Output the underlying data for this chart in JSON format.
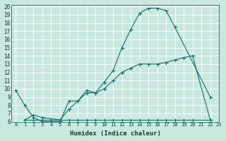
{
  "xlabel": "Humidex (Indice chaleur)",
  "xlim": [
    -0.5,
    23
  ],
  "ylim": [
    6,
    20.2
  ],
  "xticks": [
    0,
    1,
    2,
    3,
    4,
    5,
    6,
    7,
    8,
    9,
    10,
    11,
    12,
    13,
    14,
    15,
    16,
    17,
    18,
    19,
    20,
    21,
    22,
    23
  ],
  "yticks": [
    6,
    7,
    8,
    9,
    10,
    11,
    12,
    13,
    14,
    15,
    16,
    17,
    18,
    19,
    20
  ],
  "bg_color": "#c8e8e0",
  "grid_color": "#b0d8d0",
  "line_color": "#1a6b6b",
  "curve1_x": [
    0,
    1,
    2,
    3,
    4,
    5,
    6,
    7,
    8,
    9,
    10,
    11,
    12,
    13,
    14,
    15,
    16,
    17,
    18,
    22
  ],
  "curve1_y": [
    9.8,
    8.0,
    6.5,
    6.0,
    6.0,
    6.0,
    8.5,
    8.5,
    9.8,
    9.5,
    10.8,
    12.2,
    15.0,
    17.2,
    19.2,
    19.8,
    19.8,
    19.5,
    17.5,
    9.0
  ],
  "curve2_x": [
    1,
    2,
    3,
    5,
    6,
    7,
    8,
    9,
    10,
    11,
    12,
    13,
    14,
    15,
    16,
    17,
    18,
    19,
    20,
    22
  ],
  "curve2_y": [
    6.2,
    6.8,
    6.5,
    6.2,
    7.5,
    8.5,
    9.5,
    9.5,
    10.0,
    11.0,
    12.0,
    12.5,
    13.0,
    13.0,
    13.0,
    13.2,
    13.5,
    13.8,
    14.0,
    6.2
  ],
  "curve3_x": [
    1,
    2,
    3,
    4,
    5,
    6,
    7,
    8,
    9,
    10,
    11,
    12,
    13,
    14,
    15,
    16,
    17,
    18,
    19,
    20,
    22
  ],
  "curve3_y": [
    6.2,
    6.2,
    6.2,
    6.2,
    6.2,
    6.2,
    6.2,
    6.2,
    6.2,
    6.2,
    6.2,
    6.2,
    6.2,
    6.2,
    6.2,
    6.2,
    6.2,
    6.2,
    6.2,
    6.2,
    6.2
  ]
}
